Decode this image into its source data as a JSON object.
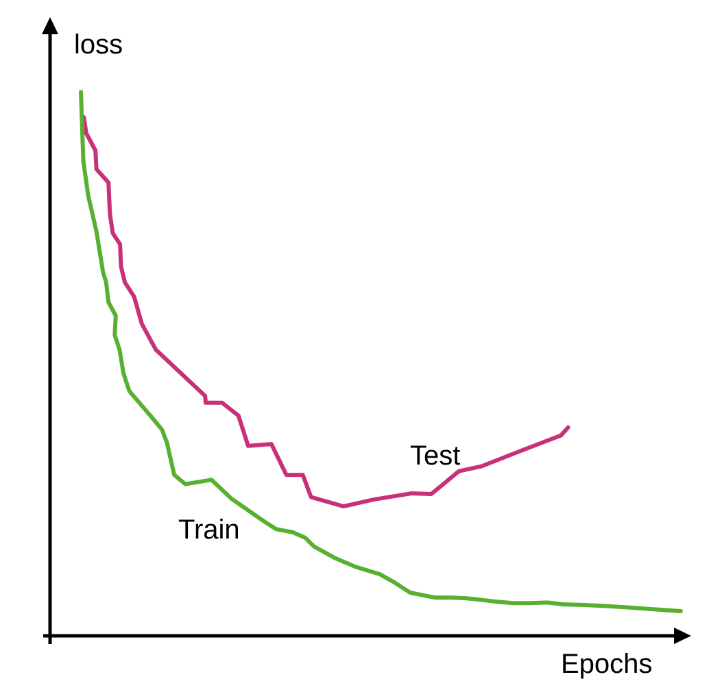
{
  "chart_data": {
    "type": "line",
    "xlabel": "Epochs",
    "ylabel": "loss",
    "grid": false,
    "legend": "none",
    "series": [
      {
        "name": "Test",
        "color": "#c8307a",
        "points": [
          [
            0.6,
            84.1
          ],
          [
            1.1,
            81.5
          ],
          [
            3.0,
            78.7
          ],
          [
            3.2,
            75.7
          ],
          [
            5.7,
            73.5
          ],
          [
            6.0,
            68.4
          ],
          [
            6.6,
            65.3
          ],
          [
            8.1,
            63.5
          ],
          [
            8.3,
            59.9
          ],
          [
            9.1,
            57.3
          ],
          [
            11.0,
            55.0
          ],
          [
            12.6,
            50.6
          ],
          [
            15.5,
            46.4
          ],
          [
            25.7,
            38.9
          ],
          [
            25.8,
            37.8
          ],
          [
            29.2,
            37.8
          ],
          [
            32.6,
            35.7
          ],
          [
            34.6,
            30.8
          ],
          [
            39.4,
            31.1
          ],
          [
            42.5,
            26.1
          ],
          [
            45.9,
            26.1
          ],
          [
            47.6,
            22.5
          ],
          [
            54.3,
            21.0
          ],
          [
            60.6,
            22.1
          ],
          [
            68.4,
            23.1
          ],
          [
            72.5,
            23.0
          ],
          [
            78.2,
            26.7
          ],
          [
            82.9,
            27.5
          ],
          [
            91.0,
            30.0
          ],
          [
            99.3,
            32.5
          ],
          [
            100.8,
            33.8
          ]
        ]
      },
      {
        "name": "Train",
        "color": "#58b030",
        "points": [
          [
            0.0,
            88.2
          ],
          [
            0.5,
            77.0
          ],
          [
            1.5,
            71.4
          ],
          [
            3.2,
            65.6
          ],
          [
            4.6,
            58.9
          ],
          [
            5.2,
            57.4
          ],
          [
            5.7,
            54.1
          ],
          [
            7.2,
            51.9
          ],
          [
            7.0,
            48.8
          ],
          [
            8.0,
            46.4
          ],
          [
            8.8,
            42.6
          ],
          [
            10.0,
            39.7
          ],
          [
            12.3,
            37.6
          ],
          [
            14.6,
            35.5
          ],
          [
            16.8,
            33.4
          ],
          [
            17.8,
            31.3
          ],
          [
            19.3,
            26.1
          ],
          [
            21.6,
            24.6
          ],
          [
            27.0,
            25.3
          ],
          [
            31.2,
            22.2
          ],
          [
            38.0,
            18.5
          ],
          [
            40.4,
            17.3
          ],
          [
            43.8,
            16.8
          ],
          [
            46.4,
            15.9
          ],
          [
            48.2,
            14.5
          ],
          [
            52.6,
            12.6
          ],
          [
            56.8,
            11.2
          ],
          [
            61.8,
            10.0
          ],
          [
            64.8,
            8.7
          ],
          [
            68.1,
            7.0
          ],
          [
            73.2,
            6.2
          ],
          [
            76.5,
            6.2
          ],
          [
            79.7,
            6.1
          ],
          [
            83.1,
            5.8
          ],
          [
            86.4,
            5.5
          ],
          [
            89.5,
            5.3
          ],
          [
            92.9,
            5.3
          ],
          [
            96.5,
            5.4
          ],
          [
            99.8,
            5.1
          ],
          [
            104.1,
            5.0
          ],
          [
            109.2,
            4.8
          ],
          [
            113.3,
            4.6
          ],
          [
            118.5,
            4.3
          ],
          [
            124.1,
            4.0
          ]
        ]
      }
    ],
    "annotations": [
      {
        "text": "Test",
        "series": "Test"
      },
      {
        "text": "Train",
        "series": "Train"
      }
    ]
  }
}
